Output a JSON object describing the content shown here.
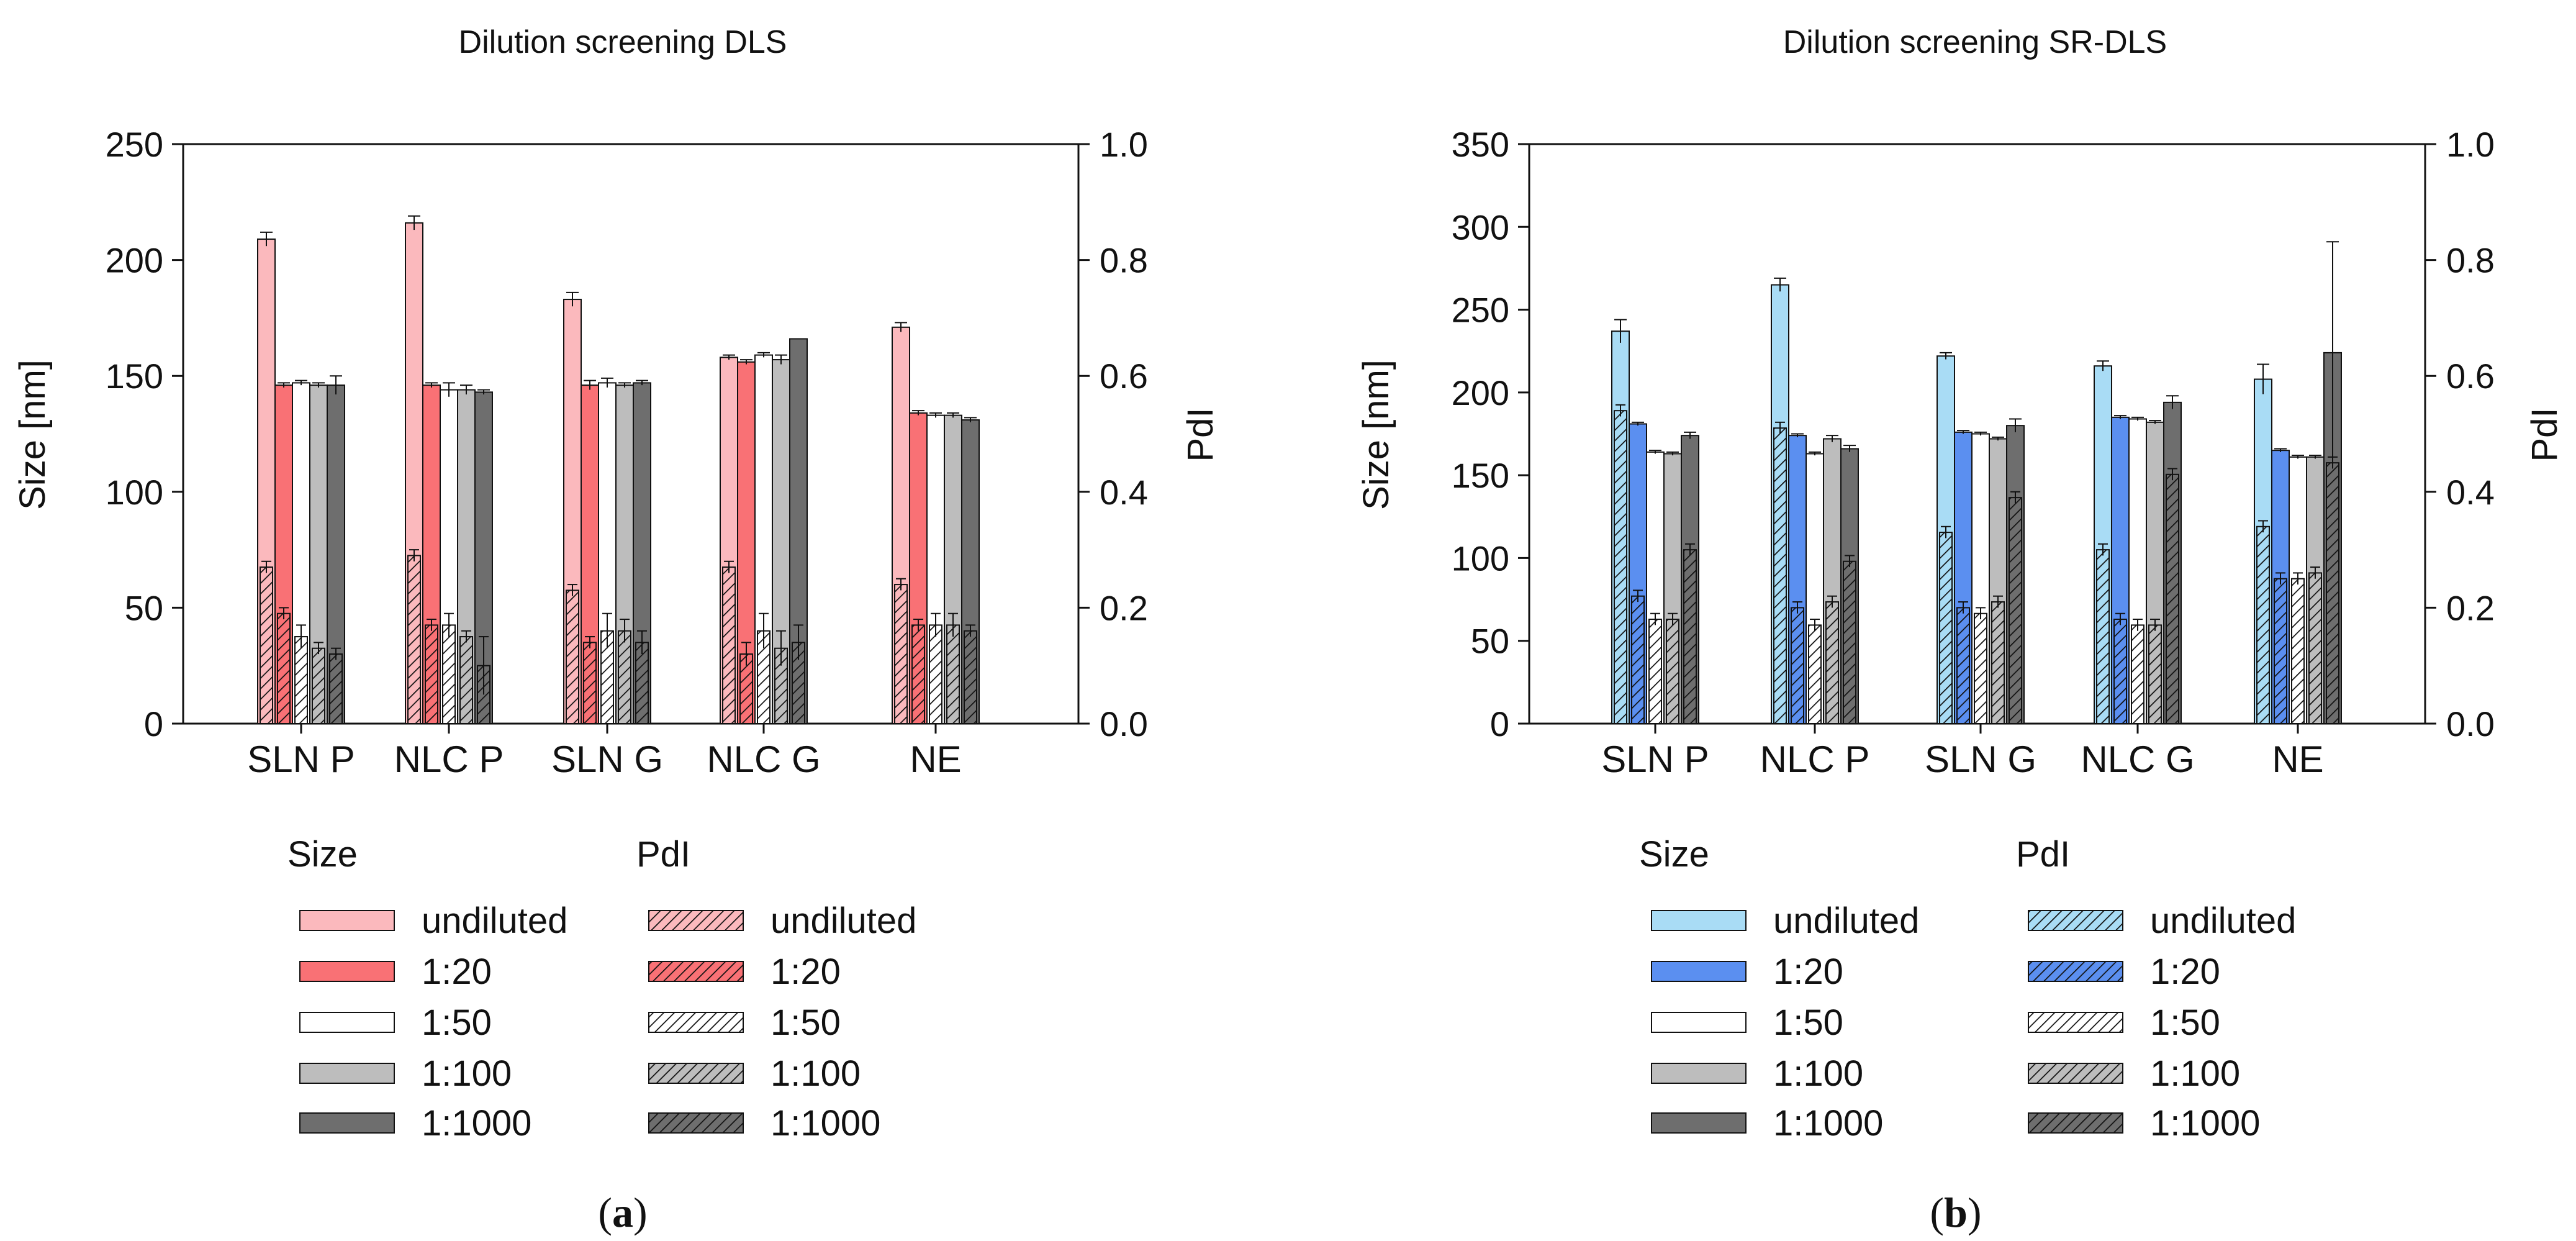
{
  "chart_data": [
    {
      "id": "a",
      "type": "bar",
      "title": "Dilution screening DLS",
      "ylabel": "Size [nm]",
      "y2label": "PdI",
      "ylim": [
        0,
        250
      ],
      "y2lim": [
        0.0,
        1.0
      ],
      "yticks": [
        "0",
        "50",
        "100",
        "150",
        "200",
        "250"
      ],
      "y2ticks": [
        "0.0",
        "0.2",
        "0.4",
        "0.6",
        "0.8",
        "1.0"
      ],
      "categories": [
        "SLN P",
        "NLC P",
        "SLN G",
        "NLC G",
        "NE"
      ],
      "legend_titles": {
        "size": "Size",
        "pdi": "PdI"
      },
      "series": [
        {
          "name": "undiluted",
          "color": "#fbb9bd",
          "size": [
            209,
            216,
            183,
            158,
            171
          ],
          "size_err": [
            3,
            3,
            3,
            1,
            2
          ],
          "pdi": [
            0.27,
            0.29,
            0.23,
            0.27,
            0.24
          ],
          "pdi_err": [
            0.01,
            0.01,
            0.01,
            0.01,
            0.01
          ]
        },
        {
          "name": "1:20",
          "color": "#f97175",
          "size": [
            146,
            146,
            146,
            156,
            134
          ],
          "size_err": [
            1,
            1,
            2,
            1,
            1
          ],
          "pdi": [
            0.19,
            0.17,
            0.14,
            0.12,
            0.17
          ],
          "pdi_err": [
            0.01,
            0.01,
            0.01,
            0.02,
            0.01
          ]
        },
        {
          "name": "1:50",
          "color": "#ffffff",
          "size": [
            147,
            144,
            147,
            159,
            133
          ],
          "size_err": [
            1,
            3,
            2,
            1,
            1
          ],
          "pdi": [
            0.15,
            0.17,
            0.16,
            0.16,
            0.17
          ],
          "pdi_err": [
            0.02,
            0.02,
            0.03,
            0.03,
            0.02
          ]
        },
        {
          "name": "1:100",
          "color": "#bdbdbd",
          "size": [
            146,
            144,
            146,
            157,
            133
          ],
          "size_err": [
            1,
            2,
            1,
            2,
            1
          ],
          "pdi": [
            0.13,
            0.15,
            0.16,
            0.13,
            0.17
          ],
          "pdi_err": [
            0.01,
            0.01,
            0.02,
            0.03,
            0.02
          ]
        },
        {
          "name": "1:1000",
          "color": "#6e6e6e",
          "size": [
            146,
            143,
            147,
            166,
            131
          ],
          "size_err": [
            4,
            1,
            1,
            0,
            1
          ],
          "pdi": [
            0.12,
            0.1,
            0.14,
            0.14,
            0.16
          ],
          "pdi_err": [
            0.01,
            0.05,
            0.02,
            0.03,
            0.01
          ]
        }
      ],
      "caption": "a"
    },
    {
      "id": "b",
      "type": "bar",
      "title": "Dilution screening SR-DLS",
      "ylabel": "Size [nm]",
      "y2label": "PdI",
      "ylim": [
        0,
        350
      ],
      "y2lim": [
        0.0,
        1.0
      ],
      "yticks": [
        "0",
        "50",
        "100",
        "150",
        "200",
        "250",
        "300",
        "350"
      ],
      "y2ticks": [
        "0.0",
        "0.2",
        "0.4",
        "0.6",
        "0.8",
        "1.0"
      ],
      "categories": [
        "SLN P",
        "NLC P",
        "SLN G",
        "NLC G",
        "NE"
      ],
      "legend_titles": {
        "size": "Size",
        "pdi": "PdI"
      },
      "series": [
        {
          "name": "undiluted",
          "color": "#a9dcf5",
          "size": [
            237,
            265,
            222,
            216,
            208
          ],
          "size_err": [
            7,
            4,
            2,
            3,
            9
          ],
          "pdi": [
            0.54,
            0.51,
            0.33,
            0.3,
            0.34
          ],
          "pdi_err": [
            0.01,
            0.01,
            0.01,
            0.01,
            0.01
          ]
        },
        {
          "name": "1:20",
          "color": "#5b8ff0",
          "size": [
            181,
            174,
            176,
            185,
            165
          ],
          "size_err": [
            1,
            1,
            1,
            1,
            1
          ],
          "pdi": [
            0.22,
            0.2,
            0.2,
            0.18,
            0.25
          ],
          "pdi_err": [
            0.01,
            0.01,
            0.01,
            0.01,
            0.01
          ]
        },
        {
          "name": "1:50",
          "color": "#ffffff",
          "size": [
            164,
            163,
            175,
            184,
            161
          ],
          "size_err": [
            1,
            1,
            1,
            1,
            1
          ],
          "pdi": [
            0.18,
            0.17,
            0.19,
            0.17,
            0.25
          ],
          "pdi_err": [
            0.01,
            0.01,
            0.01,
            0.01,
            0.01
          ]
        },
        {
          "name": "1:100",
          "color": "#bdbdbd",
          "size": [
            163,
            172,
            172,
            182,
            161
          ],
          "size_err": [
            1,
            2,
            1,
            1,
            1
          ],
          "pdi": [
            0.18,
            0.21,
            0.21,
            0.17,
            0.26
          ],
          "pdi_err": [
            0.01,
            0.01,
            0.01,
            0.01,
            0.01
          ]
        },
        {
          "name": "1:1000",
          "color": "#6e6e6e",
          "size": [
            174,
            166,
            180,
            194,
            224
          ],
          "size_err": [
            2,
            2,
            4,
            4,
            67
          ],
          "pdi": [
            0.3,
            0.28,
            0.39,
            0.43,
            0.45
          ],
          "pdi_err": [
            0.01,
            0.01,
            0.01,
            0.01,
            0.01
          ]
        }
      ],
      "caption": "b"
    }
  ]
}
